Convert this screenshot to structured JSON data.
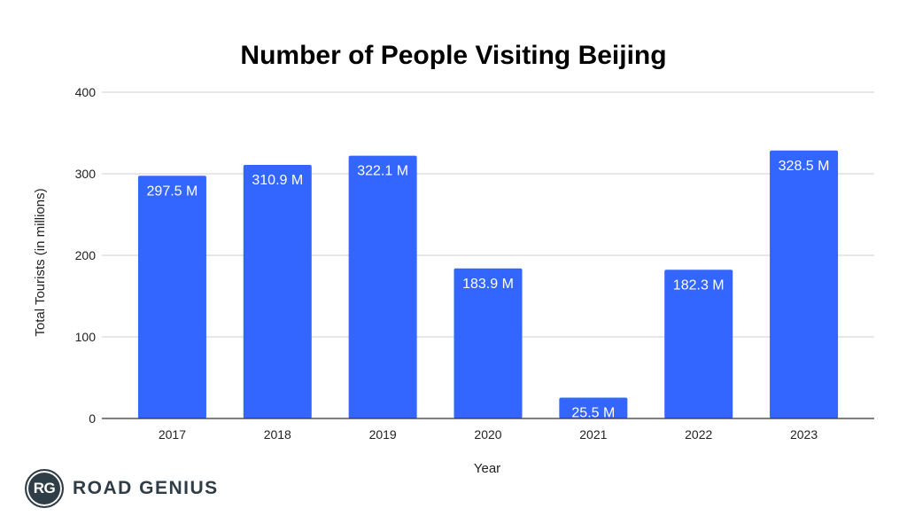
{
  "chart_data": {
    "type": "bar",
    "title": "Number of People Visiting Beijing",
    "xlabel": "Year",
    "ylabel": "Total Tourists (in millions)",
    "categories": [
      "2017",
      "2018",
      "2019",
      "2020",
      "2021",
      "2022",
      "2023"
    ],
    "values": [
      297.5,
      310.9,
      322.1,
      183.9,
      25.5,
      182.3,
      328.5
    ],
    "data_labels": [
      "297.5 M",
      "310.9 M",
      "322.1 M",
      "183.9 M",
      "25.5 M",
      "182.3 M",
      "328.5 M"
    ],
    "ylim": [
      0,
      400
    ],
    "yticks": [
      0,
      100,
      200,
      300,
      400
    ],
    "grid": true,
    "bar_color": "#3366ff"
  },
  "logo": {
    "badge_text": "RG",
    "brand_text": "ROAD GENIUS",
    "color": "#2f3d47"
  }
}
